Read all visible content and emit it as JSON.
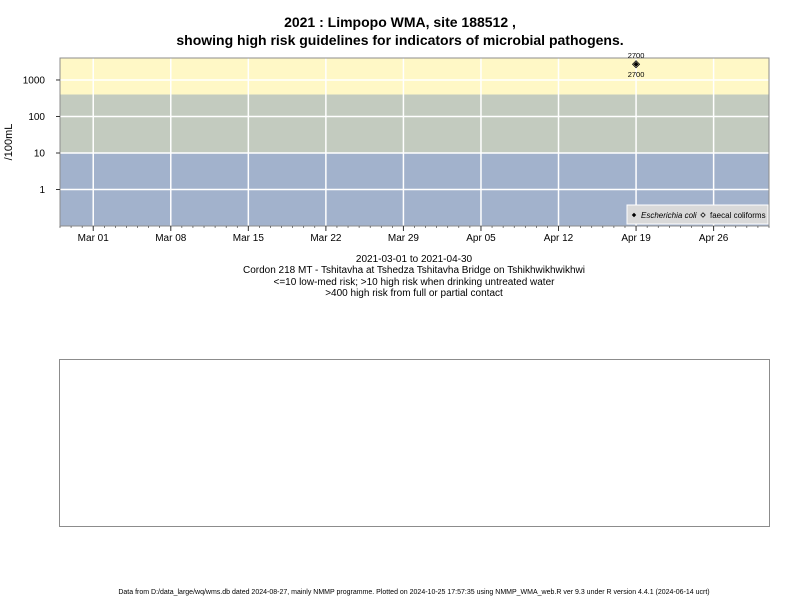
{
  "chart_data": {
    "type": "scatter",
    "title": "2021 : Limpopo WMA, site 188512 ,",
    "subtitle": "showing high risk guidelines for indicators of microbial pathogens.",
    "ylabel": "/100mL",
    "y_scale": "log10",
    "ylim": [
      0.1,
      4000
    ],
    "y_ticks": [
      {
        "value": 1,
        "label": "1"
      },
      {
        "value": 10,
        "label": "10"
      },
      {
        "value": 100,
        "label": "100"
      },
      {
        "value": 1000,
        "label": "1000"
      }
    ],
    "xlim": [
      "2021-02-26",
      "2021-05-01"
    ],
    "x_ticks": [
      {
        "date": "2021-03-01",
        "label": "Mar 01"
      },
      {
        "date": "2021-03-08",
        "label": "Mar 08"
      },
      {
        "date": "2021-03-15",
        "label": "Mar 15"
      },
      {
        "date": "2021-03-22",
        "label": "Mar 22"
      },
      {
        "date": "2021-03-29",
        "label": "Mar 29"
      },
      {
        "date": "2021-04-05",
        "label": "Apr 05"
      },
      {
        "date": "2021-04-12",
        "label": "Apr 12"
      },
      {
        "date": "2021-04-19",
        "label": "Apr 19"
      },
      {
        "date": "2021-04-26",
        "label": "Apr 26"
      }
    ],
    "grid": true,
    "risk_bands": [
      {
        "from": 0.1,
        "to": 10,
        "color": "#a2b2cc"
      },
      {
        "from": 10,
        "to": 400,
        "color": "#c3cbbf"
      },
      {
        "from": 400,
        "to": 4000,
        "color": "#fff8c6"
      }
    ],
    "series": [
      {
        "name": "Escherichia coli",
        "marker": "filled-diamond",
        "points": [
          {
            "x": "2021-04-19",
            "y": 2700,
            "label": "2700"
          }
        ]
      },
      {
        "name": "faecal coliforms",
        "marker": "open-diamond",
        "points": [
          {
            "x": "2021-04-19",
            "y": 2700,
            "label": "2700"
          }
        ]
      }
    ],
    "legend_position": "bottom-right"
  },
  "caption": {
    "date_range": "2021-03-01 to 2021-04-30",
    "site": "Cordon 218 MT - Tshitavha at Tshedza Tshitavha Bridge on Tshikhwikhwikhwi",
    "low_risk": "<=10 low-med risk; >10 high risk when drinking untreated water",
    "high_risk": ">400 high risk from full or partial contact"
  },
  "footer": "Data from D:/data_large/wq/wms.db dated 2024-08-27, mainly NMMP programme. Plotted on 2024-10-25 17:57:35 using NMMP_WMA_web.R ver 9.3 under R version 4.4.1 (2024-06-14 ucrt)"
}
